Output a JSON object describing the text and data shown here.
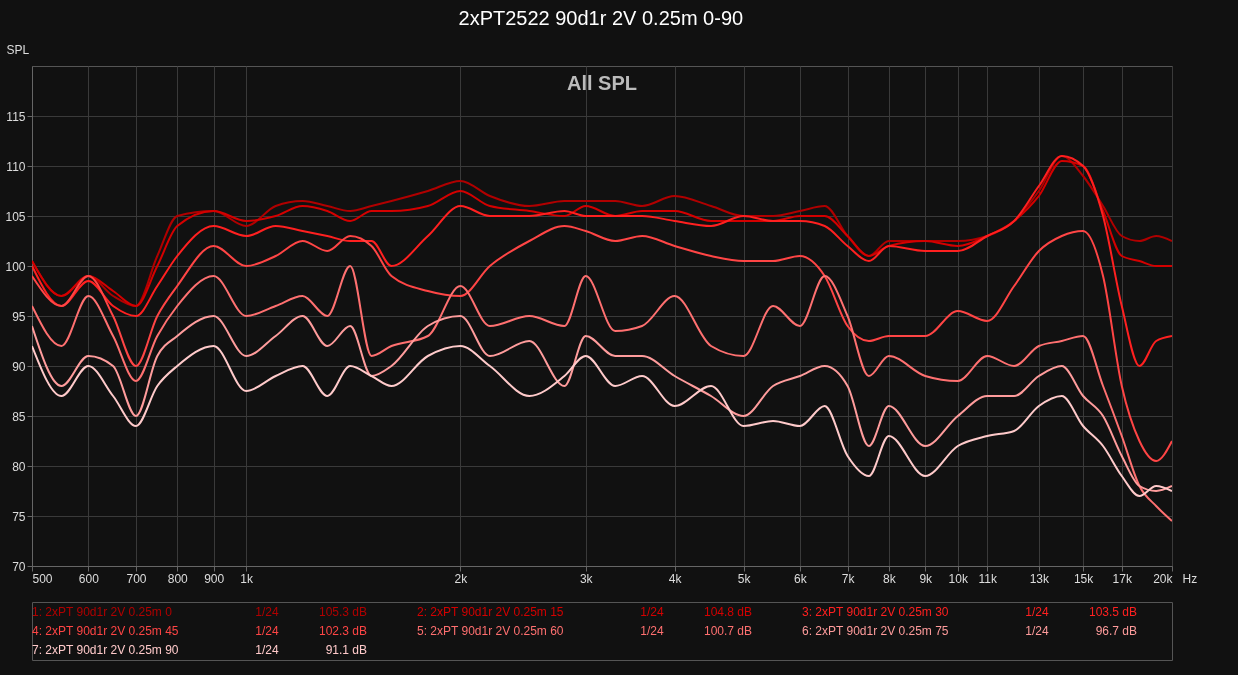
{
  "chart_data": {
    "type": "line",
    "title": "2xPT2522 90d1r 2V 0.25m 0-90",
    "ylabel": "SPL",
    "annotations": [
      "All SPL",
      "1/24",
      "105.3 dB",
      "1/24",
      "104.8 dB",
      "1/24",
      "103.5 dB",
      "1/24",
      "102.3 dB",
      "1/24",
      "100.7 dB",
      "1/24",
      "96.7 dB",
      "1/24",
      "91.1 dB"
    ],
    "x": [
      500,
      550,
      600,
      650,
      700,
      750,
      800,
      900,
      1000,
      1100,
      1200,
      1300,
      1400,
      1500,
      1600,
      1800,
      2000,
      2200,
      2500,
      2800,
      3000,
      3300,
      3600,
      4000,
      4500,
      5000,
      5500,
      6000,
      6500,
      7000,
      7500,
      8000,
      9000,
      10000,
      11000,
      12000,
      13000,
      14000,
      15000,
      16000,
      17000,
      18000,
      19000,
      20000
    ],
    "xlim": [
      500,
      20000
    ],
    "xticks": [
      500,
      600,
      700,
      800,
      900,
      {
        "value": 1000,
        "label": "1k"
      },
      {
        "value": 2000,
        "label": "2k"
      },
      {
        "value": 3000,
        "label": "3k"
      },
      {
        "value": 4000,
        "label": "4k"
      },
      {
        "value": 5000,
        "label": "5k"
      },
      {
        "value": 6000,
        "label": "6k"
      },
      {
        "value": 7000,
        "label": "7k"
      },
      {
        "value": 8000,
        "label": "8k"
      },
      {
        "value": 9000,
        "label": "9k"
      },
      {
        "value": 10000,
        "label": "10k"
      },
      {
        "value": 11000,
        "label": "11k"
      },
      {
        "value": 13000,
        "label": "13k"
      },
      {
        "value": 15000,
        "label": "15k"
      },
      {
        "value": 17000,
        "label": "17k"
      },
      {
        "value": 20000,
        "label": "20k"
      }
    ],
    "xlabel": "Hz",
    "ylim": [
      70,
      120
    ],
    "yticks": [
      70,
      75,
      80,
      85,
      90,
      95,
      100,
      105,
      110,
      115
    ],
    "log": "x",
    "grid": true,
    "legend": "bottom",
    "series": [
      {
        "name": "1: 2xPT 90d1r 2V 0.25m 0",
        "color": "#b00000",
        "values": [
          100.5,
          97,
          99,
          97,
          96,
          101,
          105,
          105.5,
          104,
          106,
          106.5,
          106,
          105.5,
          106,
          106.5,
          107.5,
          108.5,
          107,
          106,
          106.5,
          106.5,
          106.5,
          106,
          107,
          106,
          105,
          105,
          105.5,
          106,
          103,
          101,
          102.5,
          102.5,
          102.5,
          103,
          104.5,
          107.5,
          111,
          109,
          106,
          103,
          102.5,
          103,
          102.5
        ]
      },
      {
        "name": "2: 2xPT 90d1r 2V 0.25m 15",
        "color": "#d40000",
        "values": [
          100.5,
          97,
          99,
          97.5,
          96,
          100,
          104,
          105.5,
          104.5,
          105,
          106,
          105.5,
          104.5,
          105.5,
          105.5,
          106,
          107.5,
          106,
          105.5,
          105,
          106,
          105,
          105.5,
          105.5,
          104.5,
          104.5,
          104.5,
          105,
          105,
          103,
          101,
          102,
          102.5,
          102,
          103,
          104.5,
          107,
          110.5,
          110,
          105.5,
          101,
          100.5,
          100,
          100
        ]
      },
      {
        "name": "3: 2xPT 90d1r 2V 0.25m 30",
        "color": "#ff2020",
        "values": [
          100,
          96,
          98.5,
          96,
          95,
          98,
          101,
          104,
          103,
          104,
          103.5,
          103,
          102.5,
          102.5,
          100,
          103,
          106,
          105,
          105,
          105.5,
          105,
          105,
          105,
          104.5,
          104,
          105,
          104.5,
          104.5,
          104,
          102,
          100.5,
          102,
          101.5,
          101.5,
          103,
          104.5,
          108,
          111,
          110,
          105,
          96,
          90,
          92.5,
          93
        ]
      },
      {
        "name": "4: 2xPT 90d1r 2V 0.25m 45",
        "color": "#ff4545",
        "values": [
          99,
          96,
          99,
          95,
          90,
          95,
          98,
          102,
          100,
          101,
          102.5,
          101.5,
          103,
          102,
          99,
          97.5,
          97,
          100,
          102.5,
          104,
          103.5,
          102.5,
          103,
          102,
          101,
          100.5,
          100.5,
          101,
          99,
          94,
          92.5,
          93,
          93,
          95.5,
          94.5,
          98,
          101.5,
          103,
          103.5,
          99,
          88,
          82.5,
          80.5,
          82.5
        ]
      },
      {
        "name": "5: 2xPT 90d1r 2V 0.25m 60",
        "color": "#ff7070",
        "values": [
          96,
          92,
          97,
          93,
          88.5,
          93,
          96,
          99,
          95,
          96,
          97,
          95,
          100,
          91,
          92,
          93,
          98,
          94,
          95,
          94,
          99,
          93.5,
          94,
          97,
          92,
          91,
          96,
          94,
          99,
          95,
          89,
          91,
          89,
          88.5,
          91,
          90,
          92,
          92.5,
          93,
          88,
          83,
          78,
          76,
          74.5
        ]
      },
      {
        "name": "6: 2xPT 90d1r 2V 0.25m 75",
        "color": "#ff9c9c",
        "values": [
          94,
          88,
          91,
          90,
          85,
          91,
          93,
          95,
          91,
          93,
          95,
          92,
          94,
          89,
          90,
          94,
          95,
          91,
          92.5,
          88,
          93,
          91,
          91,
          89,
          87,
          85,
          88,
          89,
          90,
          88,
          82,
          86,
          82,
          85,
          87,
          87,
          89,
          90,
          87,
          85,
          81,
          78,
          77.5,
          78
        ]
      },
      {
        "name": "7: 2xPT 90d1r 2V 0.25m 90",
        "color": "#ffcaca",
        "values": [
          92,
          87,
          90,
          87,
          84,
          88,
          90,
          92,
          87.5,
          89,
          90,
          87,
          90,
          89,
          88,
          91,
          92,
          90,
          87,
          89,
          91,
          88,
          89,
          86,
          88,
          84,
          84.5,
          84,
          86,
          81,
          79,
          83,
          79,
          82,
          83,
          83.5,
          86,
          87,
          84,
          82,
          79,
          77,
          78,
          77.5
        ]
      }
    ]
  }
}
